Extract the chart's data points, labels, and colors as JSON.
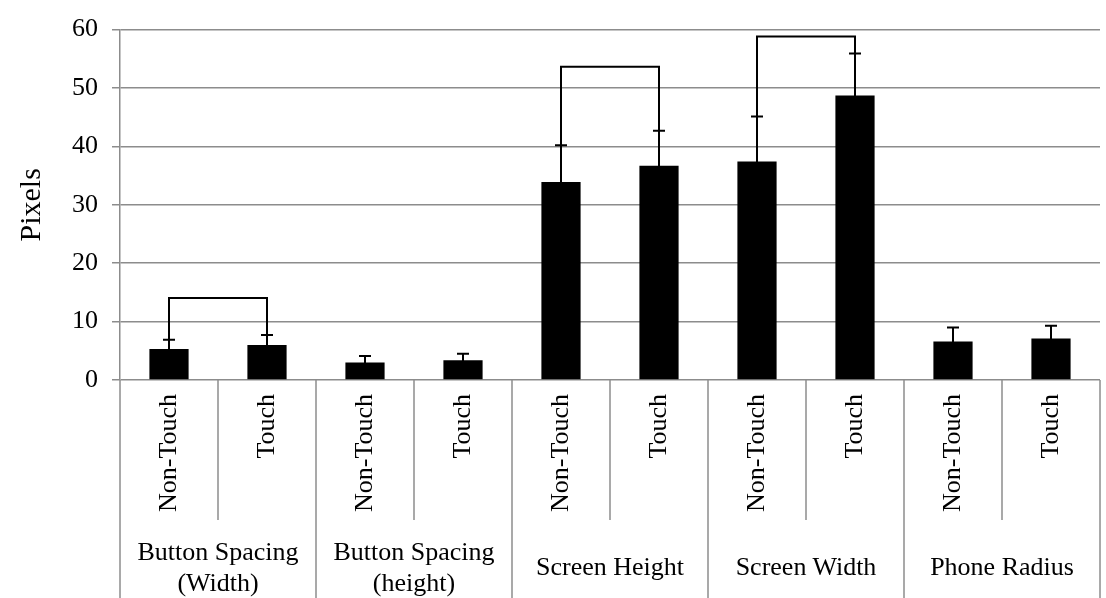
{
  "chart_data": {
    "type": "bar",
    "ylabel": "Pixels",
    "categories": [
      "Button Spacing (Width)",
      "Button Spacing (height)",
      "Screen Height",
      "Screen Width",
      "Phone Radius"
    ],
    "series": [
      {
        "name": "Non-Touch",
        "color": "#000000",
        "values": [
          5.3,
          3.0,
          33.9,
          37.4,
          6.6
        ],
        "errors": [
          1.6,
          1.1,
          6.3,
          7.7,
          2.4
        ]
      },
      {
        "name": "Touch",
        "color": "#000000",
        "values": [
          6.0,
          3.4,
          36.7,
          48.7,
          7.1
        ],
        "errors": [
          1.7,
          1.1,
          6.0,
          7.2,
          2.2
        ]
      }
    ],
    "ylim": [
      0,
      60
    ],
    "yticks": [
      0,
      10,
      20,
      30,
      40,
      50,
      60
    ],
    "grid": "y",
    "legend": false
  }
}
